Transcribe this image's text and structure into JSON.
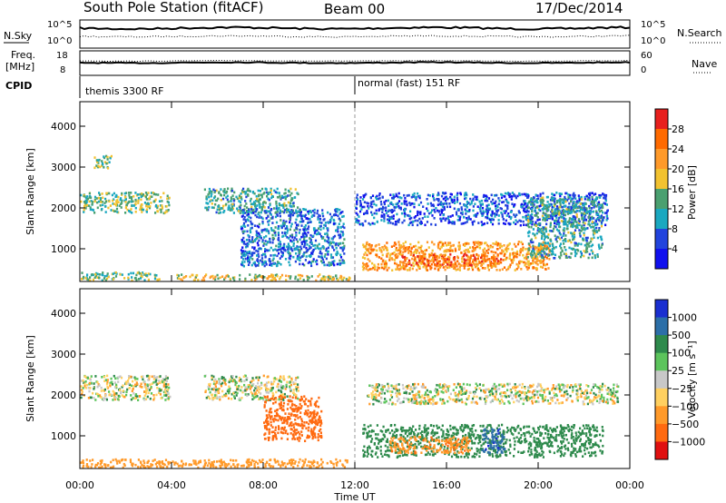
{
  "header": {
    "station": "South Pole Station (fitACF)",
    "beam": "Beam 00",
    "date": "17/Dec/2014"
  },
  "top_panels": {
    "nsky_label": "N.Sky",
    "nsky_ticks": [
      "10^5",
      "10^0"
    ],
    "nsearch_label": "N.Search",
    "freq_label_1": "Freq.",
    "freq_label_2": "[MHz]",
    "freq_ticks": [
      "18",
      "8"
    ],
    "nave_ticks": [
      "60",
      "0"
    ],
    "nave_label": "Nave",
    "cpid_label": "CPID",
    "cpid_modes": [
      "themis 3300 RF",
      "normal (fast) 151 RF"
    ]
  },
  "power_colorbar": {
    "label": "Power [dB]",
    "ticks": [
      "28",
      "24",
      "20",
      "16",
      "12",
      "8",
      "4"
    ],
    "colors": [
      "#e8201e",
      "#ff6a00",
      "#ff9a2a",
      "#f2c230",
      "#4aa070",
      "#1aa8c0",
      "#2244dd",
      "#1010ee"
    ]
  },
  "velocity_colorbar": {
    "label": "Velocity [m s⁻¹]",
    "ticks": [
      "1000",
      "500",
      "100",
      "25",
      "−25",
      "−100",
      "−500",
      "−1000"
    ],
    "colors": [
      "#1a2fd0",
      "#2c6fa8",
      "#2e8a4c",
      "#5cc45c",
      "#c8c8c8",
      "#ffd060",
      "#ff9a2a",
      "#ff6a10",
      "#e01010"
    ]
  },
  "chart_data": [
    {
      "type": "heatmap",
      "title": "",
      "variable": "Power",
      "units": "dB",
      "xlabel": "",
      "ylabel": "Slant Range [km]",
      "x_ticks": [
        "00:00",
        "04:00",
        "08:00",
        "12:00",
        "16:00",
        "20:00",
        "00:00"
      ],
      "y_ticks": [
        "1000",
        "2000",
        "3000",
        "4000"
      ],
      "ylim": [
        200,
        4600
      ],
      "xlim_hours": [
        0,
        24
      ],
      "echo_regions": [
        {
          "t0": 0.0,
          "t1": 3.9,
          "r0": 1900,
          "r1": 2400,
          "power": 14
        },
        {
          "t0": 0.6,
          "t1": 1.4,
          "r0": 3000,
          "r1": 3300,
          "power": 14
        },
        {
          "t0": 0.0,
          "t1": 3.5,
          "r0": 250,
          "r1": 450,
          "power": 14
        },
        {
          "t0": 5.4,
          "t1": 9.5,
          "r0": 1900,
          "r1": 2500,
          "power": 12
        },
        {
          "t0": 7.0,
          "t1": 11.5,
          "r0": 600,
          "r1": 2000,
          "power": 8
        },
        {
          "t0": 4.0,
          "t1": 11.8,
          "r0": 250,
          "r1": 400,
          "power": 18
        },
        {
          "t0": 12.0,
          "t1": 23.0,
          "r0": 1600,
          "r1": 2400,
          "power": 6
        },
        {
          "t0": 12.3,
          "t1": 20.5,
          "r0": 500,
          "r1": 1200,
          "power": 22
        },
        {
          "t0": 14.0,
          "t1": 18.5,
          "r0": 600,
          "r1": 900,
          "power": 26
        },
        {
          "t0": 19.5,
          "t1": 22.8,
          "r0": 800,
          "r1": 2300,
          "power": 12
        }
      ]
    },
    {
      "type": "heatmap",
      "title": "",
      "variable": "Velocity",
      "units": "m s⁻¹",
      "xlabel": "Time UT",
      "ylabel": "Slant Range [km]",
      "x_ticks": [
        "00:00",
        "04:00",
        "08:00",
        "12:00",
        "16:00",
        "20:00",
        "00:00"
      ],
      "y_ticks": [
        "1000",
        "2000",
        "3000",
        "4000"
      ],
      "ylim": [
        200,
        4600
      ],
      "xlim_hours": [
        0,
        24
      ],
      "echo_regions": [
        {
          "t0": 0.0,
          "t1": 3.9,
          "r0": 1900,
          "r1": 2500,
          "velocity": 0
        },
        {
          "t0": 5.4,
          "t1": 9.5,
          "r0": 1900,
          "r1": 2500,
          "velocity": 0
        },
        {
          "t0": 8.0,
          "t1": 10.5,
          "r0": 900,
          "r1": 2000,
          "velocity": -700
        },
        {
          "t0": 0.0,
          "t1": 11.8,
          "r0": 250,
          "r1": 450,
          "velocity": -300
        },
        {
          "t0": 12.3,
          "t1": 22.8,
          "r0": 500,
          "r1": 1300,
          "velocity": 300
        },
        {
          "t0": 13.5,
          "t1": 17.0,
          "r0": 600,
          "r1": 1000,
          "velocity": -400
        },
        {
          "t0": 17.5,
          "t1": 18.5,
          "r0": 600,
          "r1": 1200,
          "velocity": 900
        },
        {
          "t0": 12.5,
          "t1": 23.5,
          "r0": 1800,
          "r1": 2300,
          "velocity": 0
        }
      ]
    }
  ]
}
